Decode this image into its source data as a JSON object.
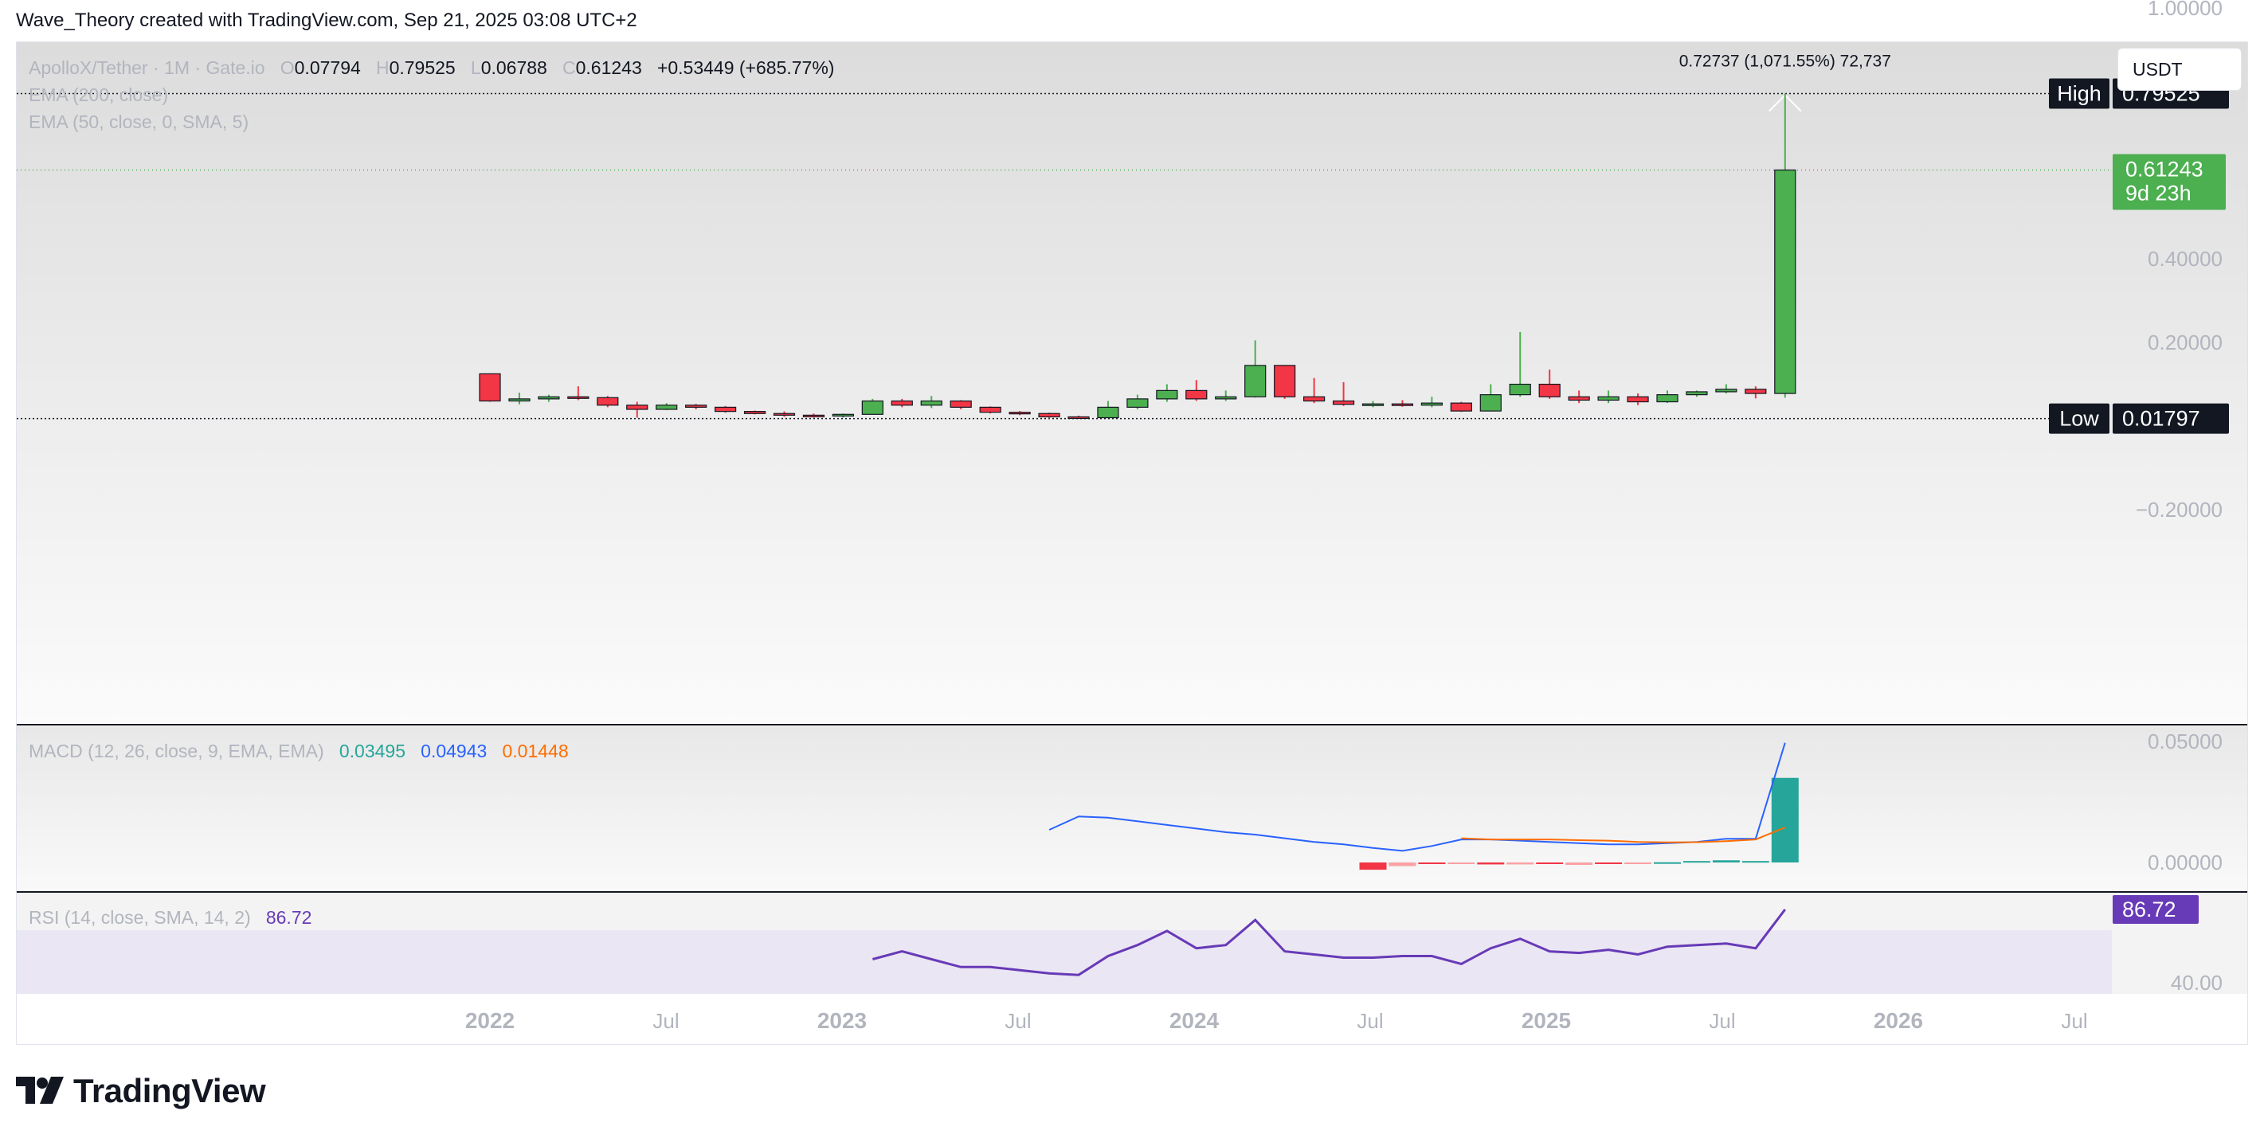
{
  "header": {
    "text": "Wave_Theory created with TradingView.com, Sep 21, 2025 03:08 UTC+2"
  },
  "legend": {
    "symbol": "ApolloX/Tether · 1M · Gate.io",
    "o_key": "O",
    "o_val": "0.07794",
    "h_key": "H",
    "h_val": "0.79525",
    "l_key": "L",
    "l_val": "0.06788",
    "c_key": "C",
    "c_val": "0.61243",
    "change": "+0.53449 (+685.77%)",
    "ema200": "EMA (200, close)",
    "ema50": "EMA (50, close, 0, SMA, 5)"
  },
  "currency_button": "USDT",
  "price_axis": {
    "ticks": [
      "1.00000",
      "0.40000",
      "0.20000",
      "−0.20000"
    ]
  },
  "markers": {
    "high_label": "High",
    "high_value": "0.79525",
    "low_label": "Low",
    "low_value": "0.01797",
    "last_price": "0.61243",
    "countdown": "9d 23h",
    "measure": "0.72737 (1,071.55%) 72,737"
  },
  "macd": {
    "label": "MACD (12, 26, close, 9, EMA, EMA)",
    "hist_val": "0.03495",
    "macd_val": "0.04943",
    "signal_val": "0.01448",
    "axis": [
      "0.05000",
      "0.00000"
    ]
  },
  "rsi": {
    "label": "RSI (14, close, SMA, 14, 2)",
    "value": "86.72",
    "axis": [
      "40.00"
    ]
  },
  "time_axis": [
    {
      "label": "2022",
      "bold": true
    },
    {
      "label": "Jul",
      "bold": false
    },
    {
      "label": "2023",
      "bold": true
    },
    {
      "label": "Jul",
      "bold": false
    },
    {
      "label": "2024",
      "bold": true
    },
    {
      "label": "Jul",
      "bold": false
    },
    {
      "label": "2025",
      "bold": true
    },
    {
      "label": "Jul",
      "bold": false
    },
    {
      "label": "2026",
      "bold": true
    },
    {
      "label": "Jul",
      "bold": false
    }
  ],
  "brand": {
    "name": "TradingView"
  },
  "colors": {
    "up": "#4caf50",
    "down": "#f23645",
    "macd": "#2962ff",
    "signal": "#ff6d00",
    "hist": "#26a69a",
    "rsi": "#673ab7"
  },
  "chart_data": {
    "type": "candlestick",
    "symbol": "ApolloX/Tether",
    "interval": "1M",
    "price_axis_ticks": [
      1.0,
      0.4,
      0.2,
      -0.2
    ],
    "high": 0.79525,
    "low": 0.01797,
    "time_labels": [
      "2022",
      "Jul",
      "2023",
      "Jul",
      "2024",
      "Jul",
      "2025",
      "Jul",
      "2026",
      "Jul"
    ],
    "candles": [
      {
        "o": 0.125,
        "h": 0.126,
        "l": 0.058,
        "c": 0.06
      },
      {
        "o": 0.06,
        "h": 0.08,
        "l": 0.052,
        "c": 0.065
      },
      {
        "o": 0.065,
        "h": 0.075,
        "l": 0.058,
        "c": 0.07
      },
      {
        "o": 0.07,
        "h": 0.095,
        "l": 0.062,
        "c": 0.068
      },
      {
        "o": 0.068,
        "h": 0.072,
        "l": 0.045,
        "c": 0.05
      },
      {
        "o": 0.05,
        "h": 0.058,
        "l": 0.02,
        "c": 0.04
      },
      {
        "o": 0.04,
        "h": 0.055,
        "l": 0.038,
        "c": 0.05
      },
      {
        "o": 0.05,
        "h": 0.053,
        "l": 0.04,
        "c": 0.045
      },
      {
        "o": 0.045,
        "h": 0.048,
        "l": 0.032,
        "c": 0.035
      },
      {
        "o": 0.035,
        "h": 0.037,
        "l": 0.028,
        "c": 0.03
      },
      {
        "o": 0.03,
        "h": 0.035,
        "l": 0.022,
        "c": 0.026
      },
      {
        "o": 0.026,
        "h": 0.03,
        "l": 0.02,
        "c": 0.024
      },
      {
        "o": 0.024,
        "h": 0.03,
        "l": 0.02,
        "c": 0.028
      },
      {
        "o": 0.028,
        "h": 0.065,
        "l": 0.027,
        "c": 0.06
      },
      {
        "o": 0.06,
        "h": 0.065,
        "l": 0.045,
        "c": 0.05
      },
      {
        "o": 0.05,
        "h": 0.072,
        "l": 0.043,
        "c": 0.06
      },
      {
        "o": 0.06,
        "h": 0.062,
        "l": 0.04,
        "c": 0.045
      },
      {
        "o": 0.045,
        "h": 0.047,
        "l": 0.03,
        "c": 0.033
      },
      {
        "o": 0.033,
        "h": 0.036,
        "l": 0.026,
        "c": 0.03
      },
      {
        "o": 0.03,
        "h": 0.032,
        "l": 0.018,
        "c": 0.022
      },
      {
        "o": 0.022,
        "h": 0.025,
        "l": 0.018,
        "c": 0.02
      },
      {
        "o": 0.02,
        "h": 0.06,
        "l": 0.02,
        "c": 0.045
      },
      {
        "o": 0.045,
        "h": 0.075,
        "l": 0.04,
        "c": 0.065
      },
      {
        "o": 0.065,
        "h": 0.1,
        "l": 0.058,
        "c": 0.085
      },
      {
        "o": 0.085,
        "h": 0.11,
        "l": 0.06,
        "c": 0.065
      },
      {
        "o": 0.065,
        "h": 0.085,
        "l": 0.06,
        "c": 0.07
      },
      {
        "o": 0.07,
        "h": 0.205,
        "l": 0.068,
        "c": 0.145
      },
      {
        "o": 0.145,
        "h": 0.146,
        "l": 0.065,
        "c": 0.07
      },
      {
        "o": 0.07,
        "h": 0.115,
        "l": 0.055,
        "c": 0.06
      },
      {
        "o": 0.06,
        "h": 0.105,
        "l": 0.048,
        "c": 0.052
      },
      {
        "o": 0.052,
        "h": 0.06,
        "l": 0.045,
        "c": 0.053
      },
      {
        "o": 0.053,
        "h": 0.062,
        "l": 0.046,
        "c": 0.05
      },
      {
        "o": 0.05,
        "h": 0.07,
        "l": 0.045,
        "c": 0.055
      },
      {
        "o": 0.055,
        "h": 0.058,
        "l": 0.034,
        "c": 0.036
      },
      {
        "o": 0.036,
        "h": 0.1,
        "l": 0.035,
        "c": 0.075
      },
      {
        "o": 0.075,
        "h": 0.225,
        "l": 0.07,
        "c": 0.1
      },
      {
        "o": 0.1,
        "h": 0.135,
        "l": 0.065,
        "c": 0.07
      },
      {
        "o": 0.07,
        "h": 0.085,
        "l": 0.055,
        "c": 0.062
      },
      {
        "o": 0.062,
        "h": 0.085,
        "l": 0.055,
        "c": 0.07
      },
      {
        "o": 0.07,
        "h": 0.078,
        "l": 0.05,
        "c": 0.058
      },
      {
        "o": 0.058,
        "h": 0.085,
        "l": 0.055,
        "c": 0.075
      },
      {
        "o": 0.075,
        "h": 0.085,
        "l": 0.07,
        "c": 0.082
      },
      {
        "o": 0.082,
        "h": 0.1,
        "l": 0.078,
        "c": 0.088
      },
      {
        "o": 0.088,
        "h": 0.095,
        "l": 0.066,
        "c": 0.078
      },
      {
        "o": 0.07794,
        "h": 0.79525,
        "l": 0.06788,
        "c": 0.61243
      }
    ],
    "macd": {
      "histogram": [
        -0.003,
        -0.0015,
        -0.0002,
        -0.0003,
        -0.0008,
        -0.0008,
        -0.0003,
        -0.001,
        -0.0003,
        -0.0002,
        0.0001,
        0.0006,
        0.0009,
        0.0006,
        0.03495
      ],
      "macd_line": [
        0.0135,
        0.019,
        0.0185,
        0.017,
        0.0155,
        0.014,
        0.0125,
        0.0115,
        0.01,
        0.0085,
        0.0075,
        0.006,
        0.0048,
        0.0068,
        0.0095,
        0.0095,
        0.009,
        0.0085,
        0.008,
        0.0075,
        0.0075,
        0.008,
        0.0085,
        0.0098,
        0.0098,
        0.04943
      ],
      "signal_line": [
        0.01,
        0.0095,
        0.0095,
        0.0095,
        0.0092,
        0.009,
        0.0085,
        0.0083,
        0.0084,
        0.0088,
        0.0095,
        0.01448
      ],
      "axis_ticks": [
        0.05,
        0.0
      ]
    },
    "rsi": {
      "values": [
        55,
        60,
        55,
        50,
        50,
        48,
        46,
        45,
        57,
        64,
        73,
        62,
        64,
        80,
        60,
        58,
        56,
        56,
        57,
        57,
        52,
        62,
        68,
        60,
        59,
        61,
        58,
        63,
        64,
        65,
        62,
        86.72
      ],
      "axis_ticks": [
        40.0
      ]
    }
  }
}
